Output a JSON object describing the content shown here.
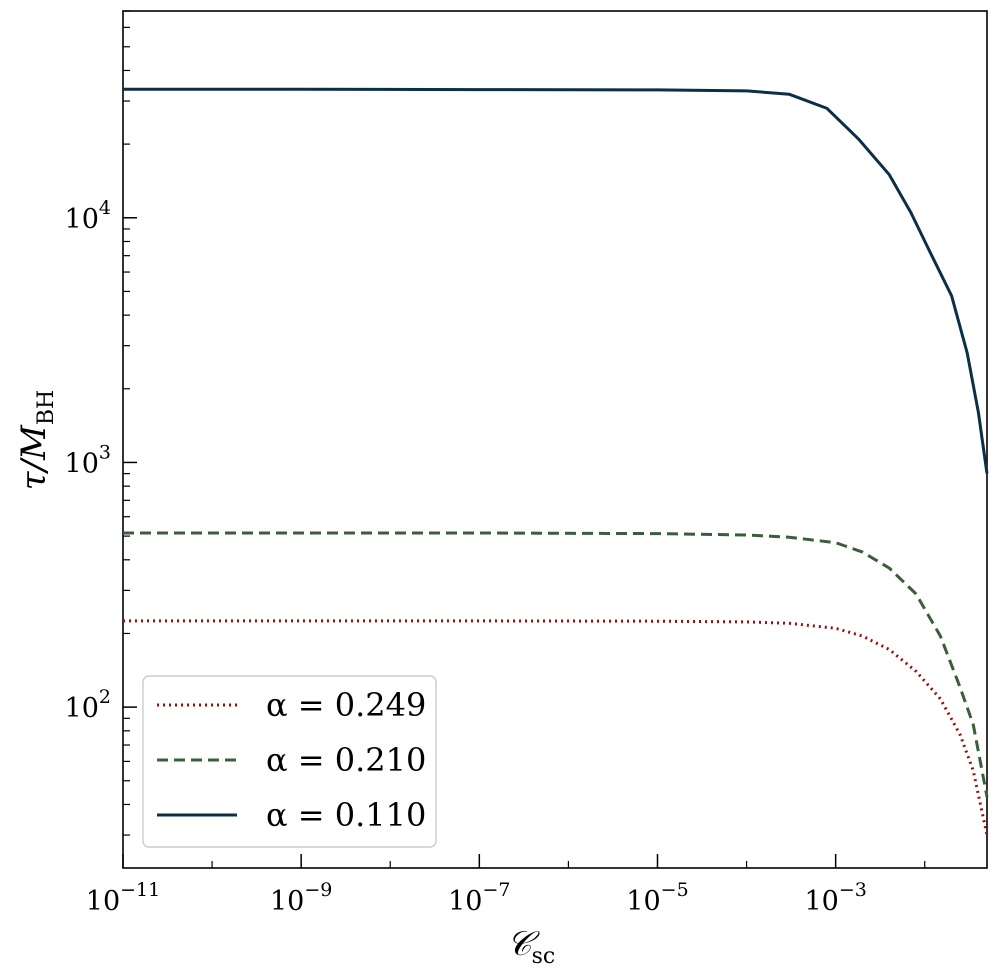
{
  "chart_data": {
    "type": "line",
    "title": "",
    "xlabel": "C_sc",
    "ylabel": "τ/M_BH",
    "x_scale": "log",
    "y_scale": "log",
    "xlim": [
      1e-11,
      0.05
    ],
    "ylim": [
      22,
      70000
    ],
    "x_ticks": [
      {
        "value": 1e-11,
        "label": "10",
        "exp": "−11"
      },
      {
        "value": 1e-09,
        "label": "10",
        "exp": "−9"
      },
      {
        "value": 1e-07,
        "label": "10",
        "exp": "−7"
      },
      {
        "value": 1e-05,
        "label": "10",
        "exp": "−5"
      },
      {
        "value": 0.001,
        "label": "10",
        "exp": "−3"
      }
    ],
    "y_ticks": [
      {
        "value": 100,
        "label": "10",
        "exp": "2"
      },
      {
        "value": 1000,
        "label": "10",
        "exp": "3"
      },
      {
        "value": 10000,
        "label": "10",
        "exp": "4"
      }
    ],
    "legend_position": "lower-left",
    "series": [
      {
        "name": "α = 0.249",
        "color": "#9b0d0d",
        "dash": "dotted",
        "x": [
          1e-11,
          1e-09,
          1e-07,
          1e-05,
          0.0001,
          0.0003,
          0.001,
          0.002,
          0.004,
          0.008,
          0.015,
          0.025,
          0.035,
          0.05
        ],
        "y": [
          225,
          225,
          225,
          224.5,
          223,
          220,
          210,
          195,
          172,
          140,
          108,
          77,
          55,
          30
        ]
      },
      {
        "name": "α = 0.210",
        "color": "#3a5e3c",
        "dash": "dashed",
        "x": [
          1e-11,
          1e-09,
          1e-07,
          1e-05,
          0.0001,
          0.0003,
          0.001,
          0.002,
          0.004,
          0.008,
          0.015,
          0.025,
          0.035,
          0.05
        ],
        "y": [
          515,
          515,
          515,
          512,
          505,
          495,
          470,
          430,
          370,
          290,
          195,
          120,
          85,
          43
        ]
      },
      {
        "name": "α = 0.110",
        "color": "#0b2f45",
        "dash": "solid",
        "x": [
          1e-11,
          1e-09,
          1e-07,
          1e-05,
          0.0001,
          0.0003,
          0.0008,
          0.0018,
          0.004,
          0.007,
          0.012,
          0.02,
          0.03,
          0.04,
          0.05
        ],
        "y": [
          33500,
          33500,
          33400,
          33300,
          33000,
          32000,
          28000,
          21000,
          15000,
          10500,
          7000,
          4800,
          2800,
          1600,
          900
        ]
      }
    ]
  }
}
